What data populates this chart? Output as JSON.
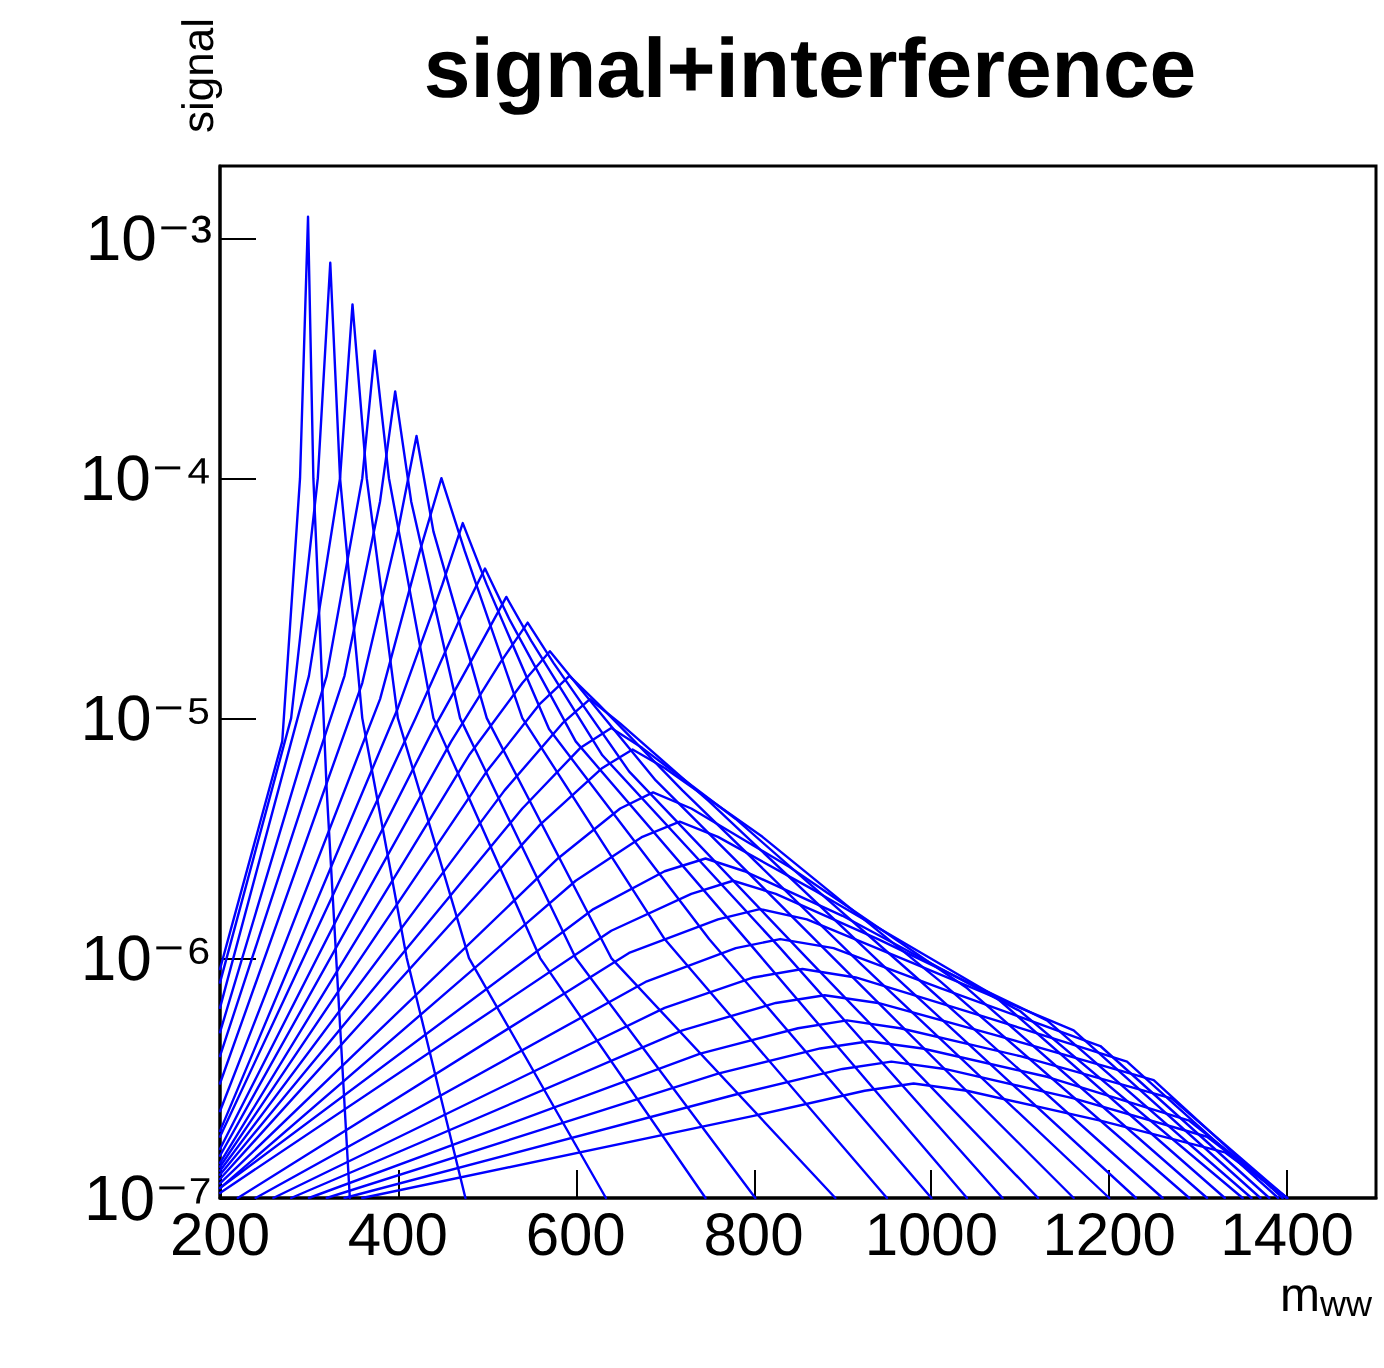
{
  "chart_data": {
    "type": "line",
    "title": "signal+interference",
    "xlabel": "m$_{ww}$",
    "ylabel": "signal",
    "log": "y",
    "grid": false,
    "marker": "none",
    "line_style": "solid",
    "xlim": [
      200,
      1500
    ],
    "xticks": [
      200,
      400,
      600,
      800,
      1000,
      1200,
      1400
    ],
    "ylim": [
      1e-07,
      0.002
    ],
    "yticks": [
      {
        "value": 1e-07,
        "label": "10⁻⁷"
      },
      {
        "value": 1e-06,
        "label": "10⁻⁶"
      },
      {
        "value": 1e-05,
        "label": "10⁻⁵"
      },
      {
        "value": 0.0001,
        "label": "10⁻⁴"
      },
      {
        "value": 0.001,
        "label": "10⁻³"
      }
    ],
    "series": [
      {
        "color": "#0000ff",
        "x": [
          200,
          270,
          290,
          299,
          305,
          320,
          346
        ],
        "values": [
          9e-07,
          8e-06,
          0.0001,
          0.00123,
          0.0001,
          5e-06,
          1e-07
        ]
      },
      {
        "color": "#0000ff",
        "x": [
          200,
          280,
          310,
          324,
          335,
          360,
          410,
          476
        ],
        "values": [
          7.9e-07,
          1e-05,
          0.0001,
          0.00079,
          0.0001,
          1e-05,
          1e-06,
          1e-07
        ]
      },
      {
        "color": "#0000ff",
        "x": [
          200,
          300,
          335,
          349,
          365,
          400,
          480,
          634
        ],
        "values": [
          6.2e-07,
          1.5e-05,
          0.0001,
          0.00053,
          0.0001,
          1e-05,
          1e-06,
          1e-07
        ]
      },
      {
        "color": "#0000ff",
        "x": [
          200,
          320,
          360,
          374,
          390,
          440,
          560,
          746
        ],
        "values": [
          4.9e-07,
          1.5e-05,
          0.0001,
          0.00034,
          0.0001,
          1e-05,
          1e-06,
          1e-07
        ]
      },
      {
        "color": "#0000ff",
        "x": [
          200,
          340,
          380,
          397,
          415,
          470,
          600,
          802
        ],
        "values": [
          3.9e-07,
          1.5e-05,
          8e-05,
          0.00023,
          8e-05,
          1e-05,
          1e-06,
          1e-07
        ]
      },
      {
        "color": "#0000ff",
        "x": [
          200,
          360,
          400,
          421,
          440,
          500,
          640,
          892
        ],
        "values": [
          3e-07,
          1.4e-05,
          6e-05,
          0.00015,
          6e-05,
          1e-05,
          1e-06,
          1e-07
        ]
      },
      {
        "color": "#0000ff",
        "x": [
          200,
          380,
          425,
          449,
          475,
          540,
          700,
          950
        ],
        "values": [
          2.3e-07,
          1.2e-05,
          5e-05,
          0.0001,
          5e-05,
          1e-05,
          1.2e-06,
          1e-07
        ]
      },
      {
        "color": "#0000ff",
        "x": [
          200,
          400,
          450,
          473,
          500,
          570,
          750,
          1000
        ],
        "values": [
          1.9e-07,
          1.1e-05,
          3.6e-05,
          6.5e-05,
          3.6e-05,
          9e-06,
          1.2e-06,
          1e-07
        ]
      },
      {
        "color": "#0000ff",
        "x": [
          200,
          420,
          470,
          498,
          525,
          600,
          800,
          1040
        ],
        "values": [
          1.8e-07,
          1e-05,
          2.6e-05,
          4.2e-05,
          2.6e-05,
          8e-06,
          1.1e-06,
          1e-07
        ]
      },
      {
        "color": "#0000ff",
        "x": [
          200,
          440,
          495,
          522,
          550,
          630,
          830,
          1080
        ],
        "values": [
          1.6e-07,
          9e-06,
          2.1e-05,
          3.2e-05,
          2.1e-05,
          7e-06,
          1.1e-06,
          1e-07
        ]
      },
      {
        "color": "#0000ff",
        "x": [
          200,
          460,
          515,
          546,
          575,
          660,
          860,
          1120
        ],
        "values": [
          1.5e-07,
          8e-06,
          1.7e-05,
          2.5e-05,
          1.7e-05,
          6e-06,
          1e-06,
          1e-07
        ]
      },
      {
        "color": "#0000ff",
        "x": [
          200,
          480,
          540,
          571,
          600,
          690,
          890,
          1160
        ],
        "values": [
          1.4e-07,
          7e-06,
          1.4e-05,
          1.9e-05,
          1.4e-05,
          5.5e-06,
          1e-06,
          1e-07
        ]
      },
      {
        "color": "#0000ff",
        "x": [
          200,
          500,
          560,
          593,
          625,
          720,
          920,
          1200
        ],
        "values": [
          1.35e-07,
          6e-06,
          1.15e-05,
          1.5e-05,
          1.15e-05,
          5e-06,
          9.5e-07,
          1e-07
        ]
      },
      {
        "color": "#0000ff",
        "x": [
          200,
          520,
          585,
          616,
          650,
          750,
          950,
          1230
        ],
        "values": [
          1.3e-07,
          5e-06,
          9.5e-06,
          1.2e-05,
          9.5e-06,
          4.5e-06,
          9e-07,
          1e-07
        ]
      },
      {
        "color": "#0000ff",
        "x": [
          200,
          540,
          605,
          640,
          675,
          780,
          980,
          1260
        ],
        "values": [
          1.25e-07,
          4.2e-06,
          7.5e-06,
          9.1e-06,
          7.5e-06,
          3.8e-06,
          8.5e-07,
          1e-07
        ]
      },
      {
        "color": "#0000ff",
        "x": [
          200,
          560,
          630,
          664,
          700,
          810,
          1010,
          1290
        ],
        "values": [
          1.2e-07,
          3.6e-06,
          6.2e-06,
          7.4e-06,
          6.2e-06,
          3.2e-06,
          8e-07,
          1e-07
        ]
      },
      {
        "color": "#0000ff",
        "x": [
          200,
          580,
          650,
          687,
          730,
          840,
          1040,
          1310
        ],
        "values": [
          1.15e-07,
          2.6e-06,
          4.2e-06,
          4.9e-06,
          4.2e-06,
          2.4e-06,
          7.5e-07,
          1e-07
        ]
      },
      {
        "color": "#0000ff",
        "x": [
          200,
          600,
          675,
          717,
          760,
          870,
          1070,
          1330
        ],
        "values": [
          1.1e-07,
          2.1e-06,
          3.2e-06,
          3.7e-06,
          3.2e-06,
          1.9e-06,
          7e-07,
          1e-07
        ]
      },
      {
        "color": "#0000ff",
        "x": [
          200,
          620,
          700,
          746,
          790,
          900,
          1100,
          1350
        ],
        "values": [
          1.1e-07,
          1.6e-06,
          2.3e-06,
          2.6e-06,
          2.3e-06,
          1.5e-06,
          6e-07,
          1e-07
        ]
      },
      {
        "color": "#0000ff",
        "x": [
          200,
          640,
          730,
          777,
          825,
          940,
          1130,
          1360
        ],
        "values": [
          1.05e-07,
          1.3e-06,
          1.85e-06,
          2.1e-06,
          1.85e-06,
          1.2e-06,
          5.5e-07,
          1e-07
        ]
      },
      {
        "color": "#0000ff",
        "x": [
          220,
          660,
          760,
          807,
          860,
          980,
          1160,
          1370
        ],
        "values": [
          1e-07,
          1.05e-06,
          1.45e-06,
          1.6e-06,
          1.45e-06,
          9.5e-07,
          5e-07,
          1e-07
        ]
      },
      {
        "color": "#0000ff",
        "x": [
          240,
          680,
          780,
          830,
          890,
          1010,
          1190,
          1380
        ],
        "values": [
          1e-07,
          8e-07,
          1.1e-06,
          1.2e-06,
          1.1e-06,
          7.5e-07,
          4.3e-07,
          1e-07
        ]
      },
      {
        "color": "#0000ff",
        "x": [
          260,
          700,
          800,
          855,
          915,
          1040,
          1220,
          1390
        ],
        "values": [
          1e-07,
          6.2e-07,
          8.3e-07,
          9e-07,
          8.3e-07,
          6e-07,
          3.7e-07,
          1e-07
        ]
      },
      {
        "color": "#0000ff",
        "x": [
          280,
          720,
          825,
          880,
          940,
          1070,
          1250,
          1395
        ],
        "values": [
          1e-07,
          5e-07,
          6.5e-07,
          7e-07,
          6.5e-07,
          4.8e-07,
          3.1e-07,
          1e-07
        ]
      },
      {
        "color": "#0000ff",
        "x": [
          300,
          740,
          850,
          905,
          965,
          1100,
          1270,
          1400
        ],
        "values": [
          1e-07,
          4e-07,
          5.1e-07,
          5.5e-07,
          5.1e-07,
          3.9e-07,
          2.6e-07,
          1e-07
        ]
      },
      {
        "color": "#0000ff",
        "x": [
          320,
          760,
          875,
          930,
          990,
          1130,
          1290,
          1400
        ],
        "values": [
          1e-07,
          3.3e-07,
          4.2e-07,
          4.5e-07,
          4.2e-07,
          3.2e-07,
          2.1e-07,
          1e-07
        ]
      },
      {
        "color": "#0000ff",
        "x": [
          340,
          780,
          900,
          955,
          1015,
          1160,
          1310,
          1400
        ],
        "values": [
          1e-07,
          2.7e-07,
          3.45e-07,
          3.7e-07,
          3.45e-07,
          2.6e-07,
          1.8e-07,
          1e-07
        ]
      },
      {
        "color": "#0000ff",
        "x": [
          360,
          800,
          925,
          980,
          1040,
          1190,
          1330,
          1400
        ],
        "values": [
          1e-07,
          2.2e-07,
          2.8e-07,
          3e-07,
          2.8e-07,
          2.1e-07,
          1.55e-07,
          1e-07
        ]
      }
    ]
  }
}
